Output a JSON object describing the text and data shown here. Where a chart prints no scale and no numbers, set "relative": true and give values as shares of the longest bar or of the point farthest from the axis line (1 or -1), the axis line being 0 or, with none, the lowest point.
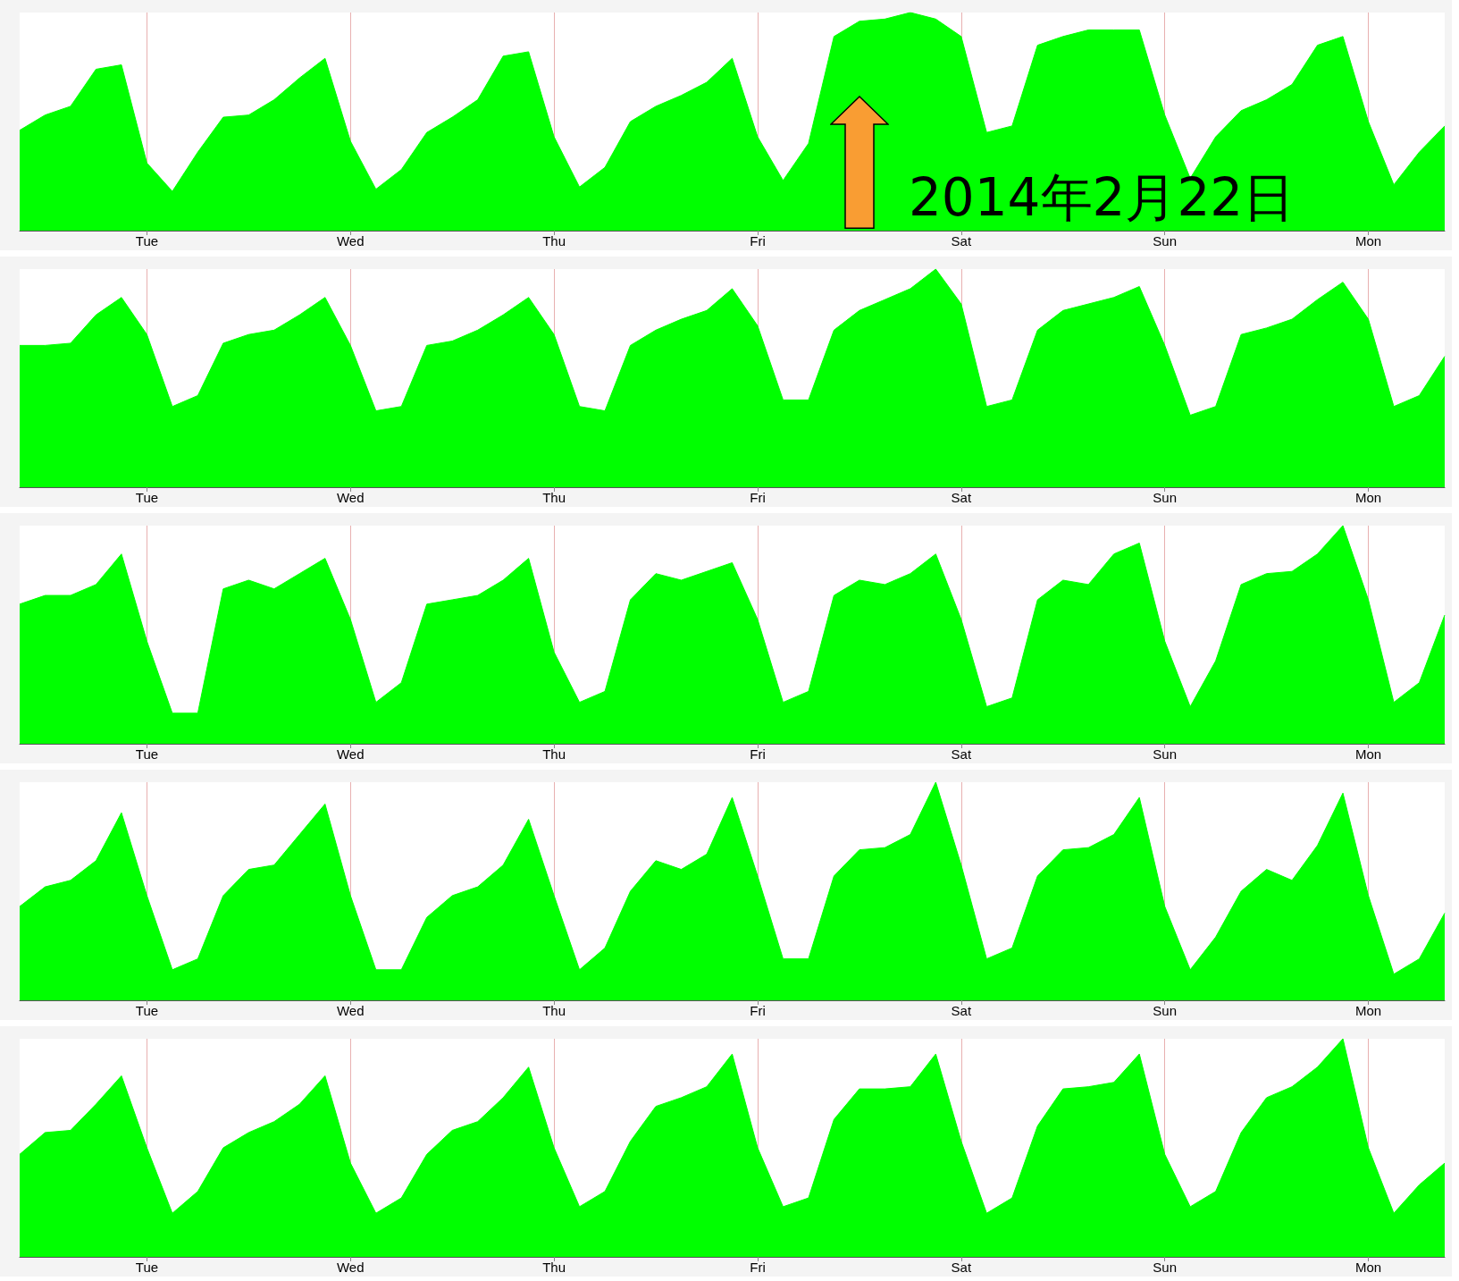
{
  "chart_data": [
    {
      "type": "area",
      "relative": true,
      "color": "#00ff00",
      "grid": "x",
      "categories": [
        null,
        null,
        null,
        null,
        null,
        "Tue",
        null,
        null,
        null,
        null,
        null,
        null,
        null,
        "Wed",
        null,
        null,
        null,
        null,
        null,
        null,
        null,
        "Thu",
        null,
        null,
        null,
        null,
        null,
        null,
        null,
        "Fri",
        null,
        null,
        null,
        null,
        null,
        null,
        null,
        "Sat",
        null,
        null,
        null,
        null,
        null,
        null,
        null,
        "Sun",
        null,
        null,
        null,
        null,
        null,
        null,
        null,
        "Mon",
        null,
        null,
        null
      ],
      "values": [
        0.46,
        0.53,
        0.57,
        0.74,
        0.76,
        0.31,
        0.18,
        0.36,
        0.52,
        0.53,
        0.6,
        0.7,
        0.79,
        0.41,
        0.19,
        0.28,
        0.45,
        0.52,
        0.6,
        0.8,
        0.82,
        0.43,
        0.2,
        0.29,
        0.5,
        0.57,
        0.62,
        0.68,
        0.79,
        0.43,
        0.23,
        0.4,
        0.89,
        0.96,
        0.97,
        1,
        0.97,
        0.89,
        0.45,
        0.48,
        0.85,
        0.89,
        0.92,
        0.92,
        0.92,
        0.53,
        0.24,
        0.43,
        0.55,
        0.6,
        0.67,
        0.85,
        0.89,
        0.5,
        0.21,
        0.36,
        0.48
      ],
      "annotations": [
        "2014年2月22日"
      ]
    },
    {
      "type": "area",
      "relative": true,
      "color": "#00ff00",
      "grid": "x",
      "categories": [
        null,
        null,
        null,
        null,
        null,
        "Tue",
        null,
        null,
        null,
        null,
        null,
        null,
        null,
        "Wed",
        null,
        null,
        null,
        null,
        null,
        null,
        null,
        "Thu",
        null,
        null,
        null,
        null,
        null,
        null,
        null,
        "Fri",
        null,
        null,
        null,
        null,
        null,
        null,
        null,
        "Sat",
        null,
        null,
        null,
        null,
        null,
        null,
        null,
        "Sun",
        null,
        null,
        null,
        null,
        null,
        null,
        null,
        "Mon",
        null,
        null,
        null
      ],
      "values": [
        0.65,
        0.65,
        0.66,
        0.79,
        0.87,
        0.7,
        0.37,
        0.42,
        0.66,
        0.7,
        0.72,
        0.79,
        0.87,
        0.65,
        0.35,
        0.37,
        0.65,
        0.67,
        0.72,
        0.79,
        0.87,
        0.7,
        0.37,
        0.35,
        0.65,
        0.72,
        0.77,
        0.81,
        0.91,
        0.74,
        0.4,
        0.4,
        0.72,
        0.81,
        0.86,
        0.91,
        1,
        0.84,
        0.37,
        0.4,
        0.72,
        0.81,
        0.84,
        0.87,
        0.92,
        0.65,
        0.33,
        0.37,
        0.7,
        0.73,
        0.77,
        0.86,
        0.94,
        0.77,
        0.37,
        0.42,
        0.6
      ]
    },
    {
      "type": "area",
      "relative": true,
      "color": "#00ff00",
      "grid": "x",
      "categories": [
        null,
        null,
        null,
        null,
        null,
        "Tue",
        null,
        null,
        null,
        null,
        null,
        null,
        null,
        "Wed",
        null,
        null,
        null,
        null,
        null,
        null,
        null,
        "Thu",
        null,
        null,
        null,
        null,
        null,
        null,
        null,
        "Fri",
        null,
        null,
        null,
        null,
        null,
        null,
        null,
        "Sat",
        null,
        null,
        null,
        null,
        null,
        null,
        null,
        "Sun",
        null,
        null,
        null,
        null,
        null,
        null,
        null,
        "Mon",
        null,
        null,
        null
      ],
      "values": [
        0.64,
        0.68,
        0.68,
        0.73,
        0.87,
        0.47,
        0.14,
        0.14,
        0.71,
        0.75,
        0.71,
        0.78,
        0.85,
        0.57,
        0.19,
        0.28,
        0.64,
        0.66,
        0.68,
        0.75,
        0.85,
        0.42,
        0.19,
        0.24,
        0.66,
        0.78,
        0.75,
        0.79,
        0.83,
        0.57,
        0.19,
        0.24,
        0.68,
        0.75,
        0.73,
        0.78,
        0.87,
        0.57,
        0.17,
        0.21,
        0.66,
        0.75,
        0.73,
        0.87,
        0.92,
        0.47,
        0.17,
        0.38,
        0.73,
        0.78,
        0.79,
        0.87,
        1,
        0.66,
        0.19,
        0.28,
        0.59
      ]
    },
    {
      "type": "area",
      "relative": true,
      "color": "#00ff00",
      "grid": "x",
      "categories": [
        null,
        null,
        null,
        null,
        null,
        "Tue",
        null,
        null,
        null,
        null,
        null,
        null,
        null,
        "Wed",
        null,
        null,
        null,
        null,
        null,
        null,
        null,
        "Thu",
        null,
        null,
        null,
        null,
        null,
        null,
        null,
        "Fri",
        null,
        null,
        null,
        null,
        null,
        null,
        null,
        "Sat",
        null,
        null,
        null,
        null,
        null,
        null,
        null,
        "Sun",
        null,
        null,
        null,
        null,
        null,
        null,
        null,
        "Mon",
        null,
        null,
        null
      ],
      "values": [
        0.43,
        0.52,
        0.55,
        0.64,
        0.86,
        0.48,
        0.14,
        0.19,
        0.48,
        0.6,
        0.62,
        0.76,
        0.9,
        0.48,
        0.14,
        0.14,
        0.38,
        0.48,
        0.52,
        0.62,
        0.83,
        0.48,
        0.14,
        0.24,
        0.5,
        0.64,
        0.6,
        0.67,
        0.93,
        0.57,
        0.19,
        0.19,
        0.57,
        0.69,
        0.7,
        0.76,
        1,
        0.62,
        0.19,
        0.24,
        0.57,
        0.69,
        0.7,
        0.76,
        0.93,
        0.43,
        0.14,
        0.29,
        0.5,
        0.6,
        0.55,
        0.71,
        0.95,
        0.48,
        0.12,
        0.19,
        0.4
      ]
    },
    {
      "type": "area",
      "relative": true,
      "color": "#00ff00",
      "grid": "x",
      "categories": [
        null,
        null,
        null,
        null,
        null,
        "Tue",
        null,
        null,
        null,
        null,
        null,
        null,
        null,
        "Wed",
        null,
        null,
        null,
        null,
        null,
        null,
        null,
        "Thu",
        null,
        null,
        null,
        null,
        null,
        null,
        null,
        "Fri",
        null,
        null,
        null,
        null,
        null,
        null,
        null,
        "Sat",
        null,
        null,
        null,
        null,
        null,
        null,
        null,
        "Sun",
        null,
        null,
        null,
        null,
        null,
        null,
        null,
        "Mon",
        null,
        null,
        null
      ],
      "values": [
        0.47,
        0.57,
        0.58,
        0.7,
        0.83,
        0.5,
        0.2,
        0.3,
        0.5,
        0.57,
        0.62,
        0.7,
        0.83,
        0.43,
        0.2,
        0.27,
        0.47,
        0.58,
        0.62,
        0.73,
        0.87,
        0.5,
        0.23,
        0.3,
        0.53,
        0.69,
        0.73,
        0.78,
        0.93,
        0.5,
        0.23,
        0.27,
        0.63,
        0.77,
        0.77,
        0.78,
        0.93,
        0.53,
        0.2,
        0.27,
        0.6,
        0.77,
        0.78,
        0.8,
        0.93,
        0.47,
        0.23,
        0.3,
        0.57,
        0.73,
        0.78,
        0.87,
        1,
        0.5,
        0.2,
        0.33,
        0.43
      ]
    }
  ]
}
